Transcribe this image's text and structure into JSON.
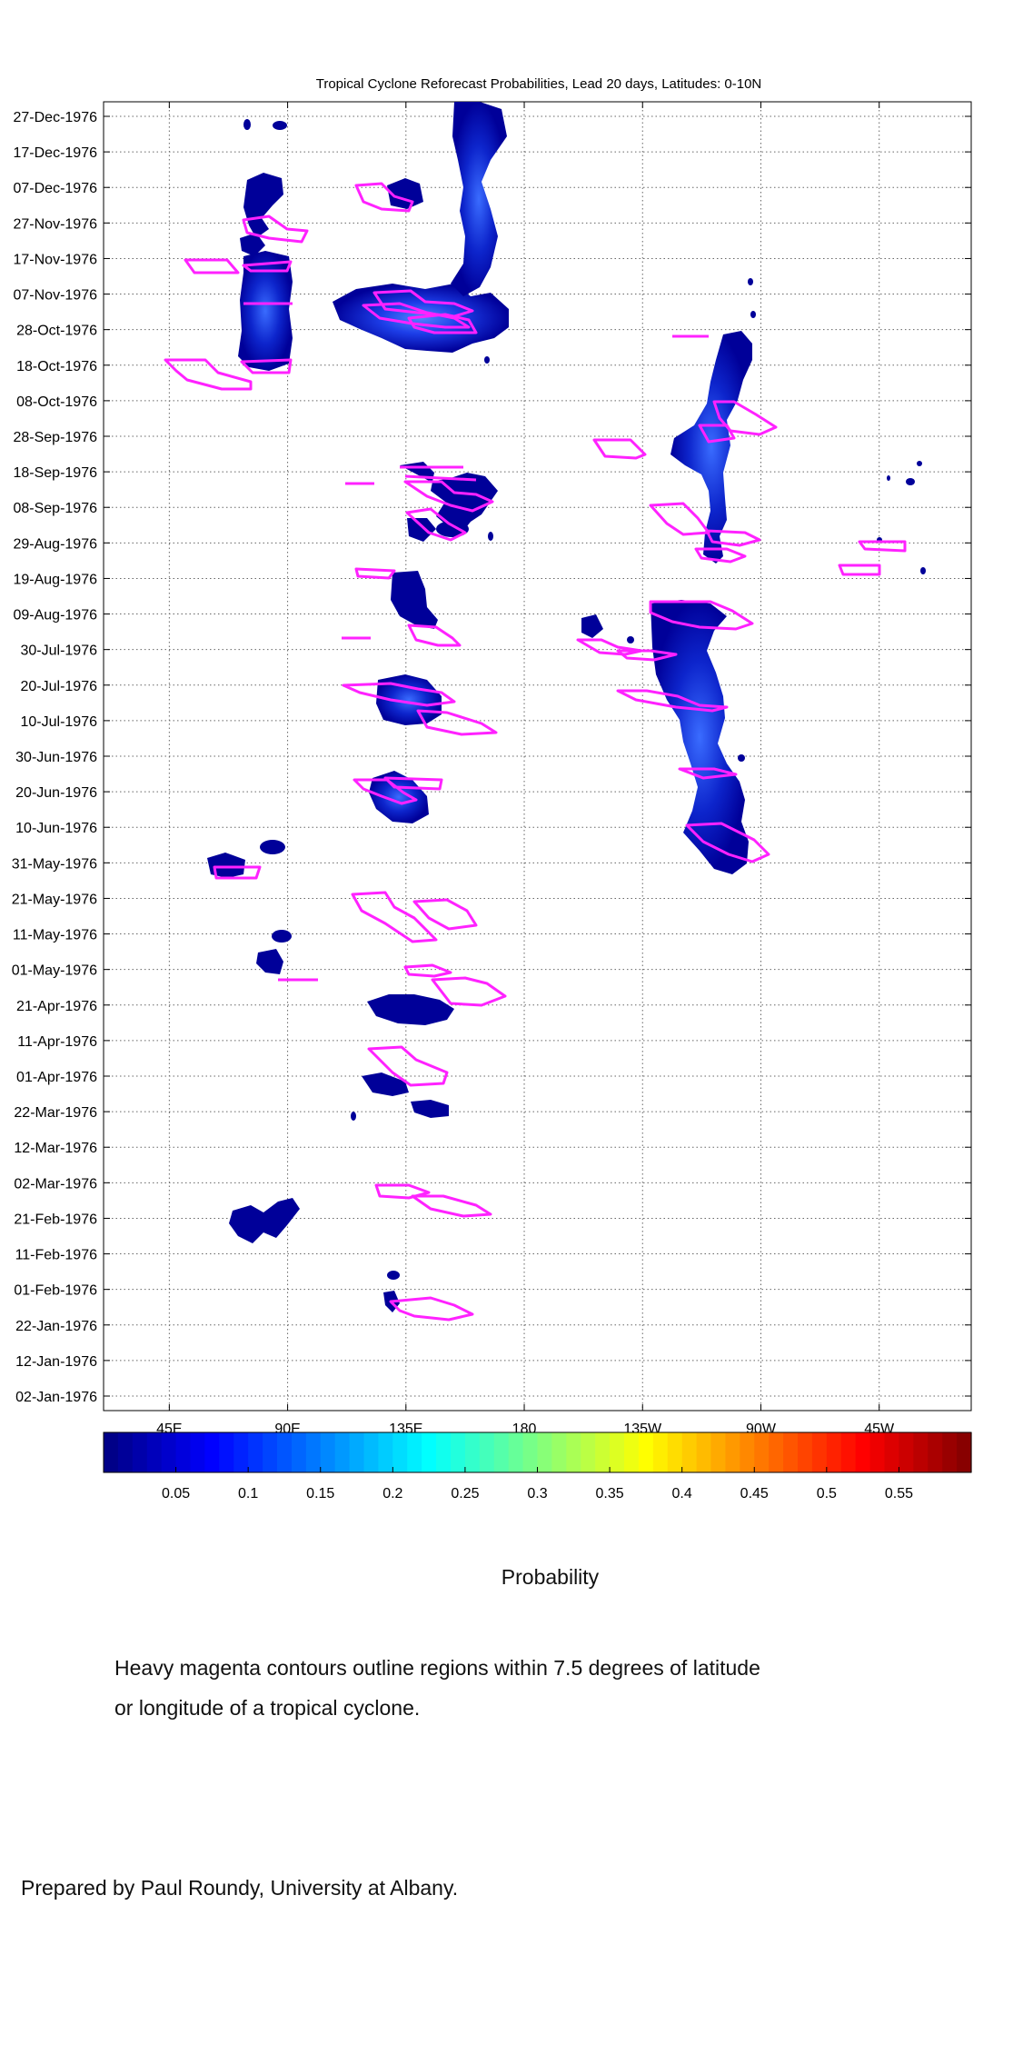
{
  "chart_data": {
    "type": "heatmap",
    "title": "Tropical Cyclone Reforecast Probabilities, Lead 20 days, Latitudes: 0-10N",
    "x_axis": {
      "label": "",
      "range_deg_east": [
        20,
        350
      ],
      "tick_labels": [
        "45E",
        "90E",
        "135E",
        "180",
        "135W",
        "90W",
        "45W"
      ],
      "tick_positions_deg_east": [
        45,
        90,
        135,
        180,
        225,
        270,
        315
      ]
    },
    "y_axis": {
      "label": "",
      "range": [
        "1976-01-02",
        "1976-12-30"
      ],
      "tick_labels": [
        "27-Dec-1976",
        "17-Dec-1976",
        "07-Dec-1976",
        "27-Nov-1976",
        "17-Nov-1976",
        "07-Nov-1976",
        "28-Oct-1976",
        "18-Oct-1976",
        "08-Oct-1976",
        "28-Sep-1976",
        "18-Sep-1976",
        "08-Sep-1976",
        "29-Aug-1976",
        "19-Aug-1976",
        "09-Aug-1976",
        "30-Jul-1976",
        "20-Jul-1976",
        "10-Jul-1976",
        "30-Jun-1976",
        "20-Jun-1976",
        "10-Jun-1976",
        "31-May-1976",
        "21-May-1976",
        "11-May-1976",
        "01-May-1976",
        "21-Apr-1976",
        "11-Apr-1976",
        "01-Apr-1976",
        "22-Mar-1976",
        "12-Mar-1976",
        "02-Mar-1976",
        "21-Feb-1976",
        "11-Feb-1976",
        "01-Feb-1976",
        "22-Jan-1976",
        "12-Jan-1976",
        "02-Jan-1976"
      ]
    },
    "grid": true,
    "colorbar": {
      "label": "Probability",
      "range": [
        0,
        0.6
      ],
      "tick_labels": [
        "0.05",
        "0.1",
        "0.15",
        "0.2",
        "0.25",
        "0.3",
        "0.35",
        "0.4",
        "0.45",
        "0.5",
        "0.55"
      ],
      "tick_values": [
        0.05,
        0.1,
        0.15,
        0.2,
        0.25,
        0.3,
        0.35,
        0.4,
        0.45,
        0.5,
        0.55
      ],
      "colormap": "jet"
    },
    "probability_regions": [
      {
        "lon": 75,
        "date": "1976-12-28",
        "p": 0.04
      },
      {
        "lon": 88,
        "date": "1976-12-28",
        "p": 0.04
      },
      {
        "lon": 78,
        "date": "1976-12-08",
        "p": 0.05
      },
      {
        "lon": 83,
        "date": "1976-11-04",
        "p": 0.1
      },
      {
        "lon": 84,
        "date": "1976-10-24",
        "p": 0.12
      },
      {
        "lon": 140,
        "date": "1976-11-02",
        "p": 0.15
      },
      {
        "lon": 130,
        "date": "1976-11-04",
        "p": 0.13
      },
      {
        "lon": 155,
        "date": "1976-10-31",
        "p": 0.15
      },
      {
        "lon": 163,
        "date": "1976-12-22",
        "p": 0.07
      },
      {
        "lon": 160,
        "date": "1976-11-25",
        "p": 0.06
      },
      {
        "lon": 150,
        "date": "1976-09-10",
        "p": 0.06
      },
      {
        "lon": 137,
        "date": "1976-08-15",
        "p": 0.06
      },
      {
        "lon": 131,
        "date": "1976-07-19",
        "p": 0.07
      },
      {
        "lon": 131,
        "date": "1976-06-19",
        "p": 0.08
      },
      {
        "lon": 135,
        "date": "1976-04-22",
        "p": 0.05
      },
      {
        "lon": 132,
        "date": "1976-04-02",
        "p": 0.05
      },
      {
        "lon": 143,
        "date": "1976-03-26",
        "p": 0.04
      },
      {
        "lon": 81,
        "date": "1976-02-23",
        "p": 0.05
      },
      {
        "lon": 70,
        "date": "1976-05-31",
        "p": 0.04
      },
      {
        "lon": 87,
        "date": "1976-05-09",
        "p": 0.04
      },
      {
        "lon": 240,
        "date": "1976-08-03",
        "p": 0.08
      },
      {
        "lon": 245,
        "date": "1976-07-15",
        "p": 0.08
      },
      {
        "lon": 255,
        "date": "1976-06-13",
        "p": 0.07
      },
      {
        "lon": 258,
        "date": "1976-10-01",
        "p": 0.11
      },
      {
        "lon": 257,
        "date": "1976-09-05",
        "p": 0.06
      },
      {
        "lon": 316,
        "date": "1976-09-15",
        "p": 0.03
      }
    ],
    "contour_description": "Heavy magenta contours outline regions within 7.5 degrees of latitude or longitude of a tropical cyclone."
  },
  "colors": {
    "contour": "#ff22ff",
    "low_prob": "#000099",
    "grid": "#555555"
  },
  "captions": {
    "colorbar_label": "Probability",
    "note_line1": "Heavy magenta contours outline regions within 7.5 degrees of latitude",
    "note_line2": "or longitude of a tropical cyclone.",
    "credit": "Prepared by Paul Roundy, University at Albany."
  }
}
